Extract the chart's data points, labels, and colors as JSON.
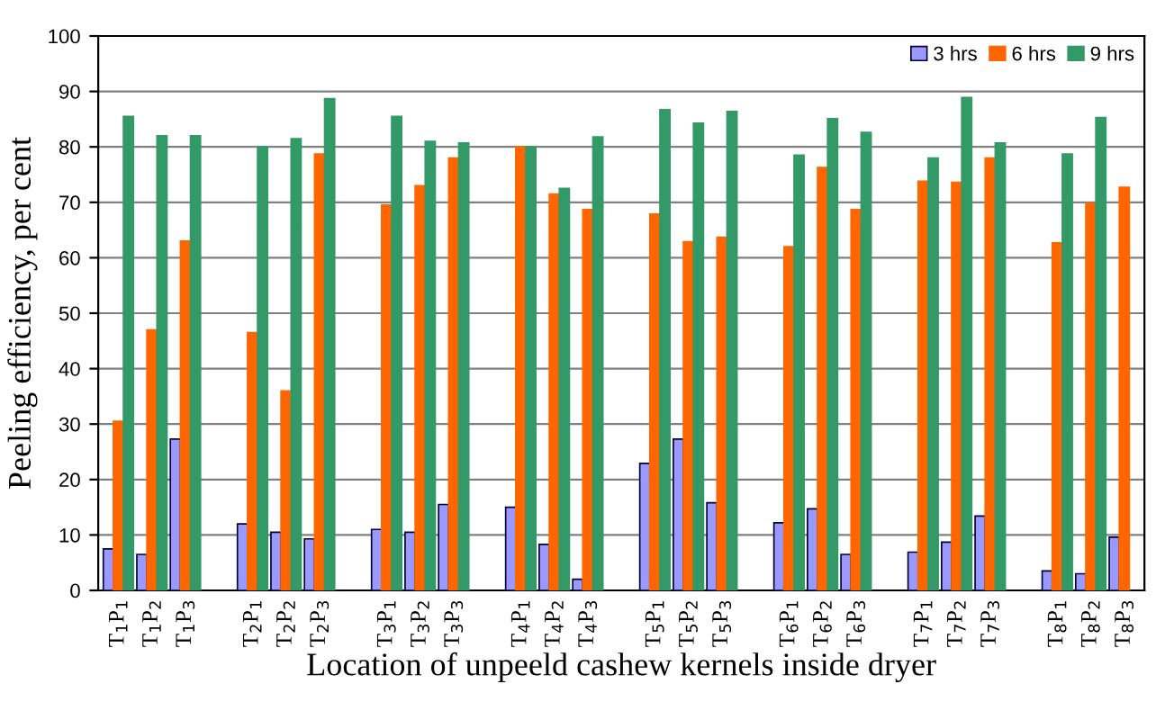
{
  "chart_data": {
    "type": "bar",
    "xlabel": "Location of unpeeld cashew kernels inside dryer",
    "ylabel": "Peeling efficiency, per cent",
    "categories": [
      "T$_{1}$P$_{1}$",
      "T$_{1}$P$_{2}$",
      "T$_{1}$P$_{3}$",
      null,
      "T$_{2}$P$_{1}$",
      "T$_{2}$P$_{2}$",
      "T$_{2}$P$_{3}$",
      null,
      "T$_{3}$P$_{1}$",
      "T$_{3}$P$_{2}$",
      "T$_{3}$P$_{3}$",
      null,
      "T$_{4}$P$_{1}$",
      "T$_{4}$P$_{2}$",
      "T$_{4}$P$_{3}$",
      null,
      "T$_{5}$P$_{1}$",
      "T$_{5}$P$_{2}$",
      "T$_{5}$P$_{3}$",
      null,
      "T$_{6}$P$_{1}$",
      "T$_{6}$P$_{2}$",
      "T$_{6}$P$_{3}$",
      null,
      "T$_{7}$P$_{1}$",
      "T$_{7}$P$_{2}$",
      "T$_{7}$P$_{3}$",
      null,
      "T$_{8}$P$_{1}$",
      "T$_{8}$P$_{2}$",
      "T$_{8}$P$_{3}$"
    ],
    "series": [
      {
        "name": "3 hrs",
        "color": "#9999ff",
        "values": [
          7.5,
          6.5,
          27.3,
          null,
          12,
          10.5,
          9.3,
          null,
          11,
          10.5,
          15.5,
          null,
          15,
          8.3,
          2,
          null,
          22.9,
          27.3,
          15.8,
          null,
          12.2,
          14.7,
          6.5,
          null,
          6.9,
          8.7,
          13.4,
          null,
          3.5,
          3,
          9.6
        ]
      },
      {
        "name": "6 hrs",
        "color": "#ff6600",
        "values": [
          30.5,
          47,
          63,
          null,
          46.5,
          36,
          78.7,
          null,
          69.5,
          73,
          78,
          null,
          80,
          71.5,
          68.7,
          null,
          67.9,
          62.9,
          63.7,
          null,
          62,
          76.3,
          68.7,
          null,
          73.8,
          73.6,
          78,
          null,
          62.7,
          69.8,
          72.7
        ]
      },
      {
        "name": "9 hrs",
        "color": "#339966",
        "values": [
          85.5,
          82,
          82,
          null,
          80,
          81.5,
          88.7,
          null,
          85.5,
          81,
          80.7,
          null,
          80,
          72.5,
          81.8,
          null,
          86.7,
          84.3,
          86.4,
          null,
          78.5,
          85.1,
          82.6,
          null,
          78,
          88.9,
          80.7,
          null,
          78.7,
          85.3,
          null
        ]
      }
    ],
    "ylim": [
      0,
      100
    ],
    "yticks": [
      0,
      10,
      20,
      30,
      40,
      50,
      60,
      70,
      80,
      90,
      100
    ],
    "grid": "y",
    "legend": "top right"
  }
}
